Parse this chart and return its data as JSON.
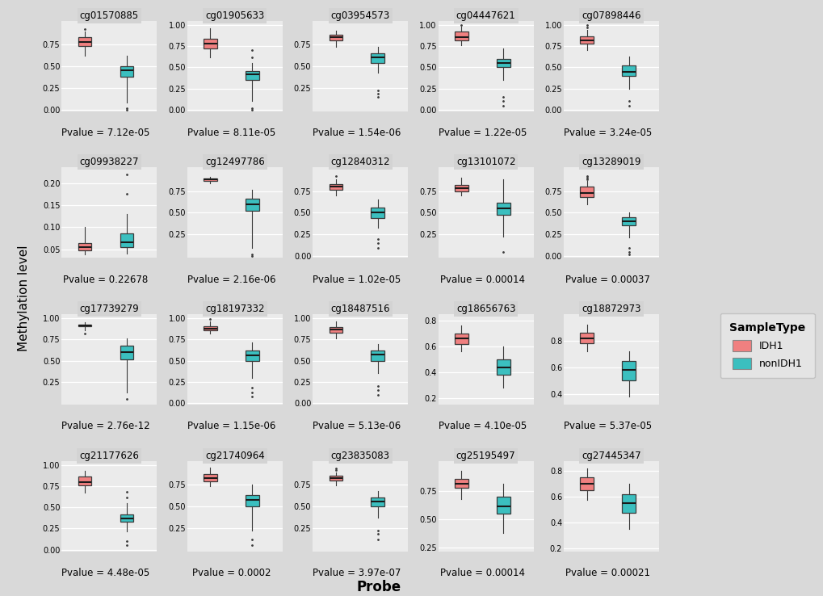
{
  "panels": [
    {
      "title": "cg01570885",
      "pvalue": "Pvalue = 7.12e-05",
      "idh1": {
        "whislo": 0.62,
        "q1": 0.73,
        "med": 0.78,
        "q3": 0.83,
        "whishi": 0.9,
        "fliers_lo": [],
        "fliers_hi": [
          0.93
        ]
      },
      "nonidh1": {
        "whislo": 0.08,
        "q1": 0.38,
        "med": 0.45,
        "q3": 0.5,
        "whishi": 0.62,
        "fliers_lo": [
          0.02,
          0.0
        ],
        "fliers_hi": []
      },
      "ylim": [
        -0.02,
        1.02
      ],
      "yticks": [
        0.0,
        0.25,
        0.5,
        0.75
      ]
    },
    {
      "title": "cg01905633",
      "pvalue": "Pvalue = 8.11e-05",
      "idh1": {
        "whislo": 0.62,
        "q1": 0.72,
        "med": 0.78,
        "q3": 0.84,
        "whishi": 0.96,
        "fliers_lo": [],
        "fliers_hi": []
      },
      "nonidh1": {
        "whislo": 0.1,
        "q1": 0.35,
        "med": 0.42,
        "q3": 0.46,
        "whishi": 0.55,
        "fliers_lo": [
          0.02,
          0.0
        ],
        "fliers_hi": [
          0.62,
          0.7
        ]
      },
      "ylim": [
        -0.02,
        1.05
      ],
      "yticks": [
        0.0,
        0.25,
        0.5,
        0.75,
        1.0
      ]
    },
    {
      "title": "cg03954573",
      "pvalue": "Pvalue = 1.54e-06",
      "idh1": {
        "whislo": 0.72,
        "q1": 0.8,
        "med": 0.83,
        "q3": 0.86,
        "whishi": 0.91,
        "fliers_lo": [],
        "fliers_hi": []
      },
      "nonidh1": {
        "whislo": 0.42,
        "q1": 0.54,
        "med": 0.6,
        "q3": 0.65,
        "whishi": 0.72,
        "fliers_lo": [
          0.22,
          0.18,
          0.15
        ],
        "fliers_hi": []
      },
      "ylim": [
        -0.02,
        1.02
      ],
      "yticks": [
        0.25,
        0.5,
        0.75
      ]
    },
    {
      "title": "cg04447621",
      "pvalue": "Pvalue = 1.22e-05",
      "idh1": {
        "whislo": 0.76,
        "q1": 0.82,
        "med": 0.86,
        "q3": 0.92,
        "whishi": 0.98,
        "fliers_lo": [],
        "fliers_hi": [
          1.0
        ]
      },
      "nonidh1": {
        "whislo": 0.35,
        "q1": 0.5,
        "med": 0.55,
        "q3": 0.6,
        "whishi": 0.72,
        "fliers_lo": [
          0.15,
          0.1,
          0.05
        ],
        "fliers_hi": []
      },
      "ylim": [
        -0.02,
        1.05
      ],
      "yticks": [
        0.0,
        0.25,
        0.5,
        0.75,
        1.0
      ]
    },
    {
      "title": "cg07898446",
      "pvalue": "Pvalue = 3.24e-05",
      "idh1": {
        "whislo": 0.7,
        "q1": 0.78,
        "med": 0.82,
        "q3": 0.87,
        "whishi": 0.94,
        "fliers_lo": [],
        "fliers_hi": [
          0.97,
          1.0
        ]
      },
      "nonidh1": {
        "whislo": 0.25,
        "q1": 0.4,
        "med": 0.45,
        "q3": 0.52,
        "whishi": 0.63,
        "fliers_lo": [
          0.1,
          0.05
        ],
        "fliers_hi": []
      },
      "ylim": [
        -0.02,
        1.05
      ],
      "yticks": [
        0.0,
        0.25,
        0.5,
        0.75,
        1.0
      ]
    },
    {
      "title": "cg09938227",
      "pvalue": "Pvalue = 0.22678",
      "idh1": {
        "whislo": 0.038,
        "q1": 0.048,
        "med": 0.054,
        "q3": 0.063,
        "whishi": 0.1,
        "fliers_lo": [],
        "fliers_hi": []
      },
      "nonidh1": {
        "whislo": 0.04,
        "q1": 0.055,
        "med": 0.065,
        "q3": 0.085,
        "whishi": 0.13,
        "fliers_lo": [],
        "fliers_hi": [
          0.175,
          0.22
        ]
      },
      "ylim": [
        0.03,
        0.235
      ],
      "yticks": [
        0.05,
        0.1,
        0.15,
        0.2
      ]
    },
    {
      "title": "cg12497786",
      "pvalue": "Pvalue = 2.16e-06",
      "idh1": {
        "whislo": 0.84,
        "q1": 0.87,
        "med": 0.885,
        "q3": 0.895,
        "whishi": 0.91,
        "fliers_lo": [],
        "fliers_hi": []
      },
      "nonidh1": {
        "whislo": 0.1,
        "q1": 0.52,
        "med": 0.6,
        "q3": 0.66,
        "whishi": 0.76,
        "fliers_lo": [
          0.02,
          0.0
        ],
        "fliers_hi": []
      },
      "ylim": [
        -0.02,
        1.02
      ],
      "yticks": [
        0.25,
        0.5,
        0.75
      ]
    },
    {
      "title": "cg12840312",
      "pvalue": "Pvalue = 1.02e-05",
      "idh1": {
        "whislo": 0.7,
        "q1": 0.76,
        "med": 0.8,
        "q3": 0.83,
        "whishi": 0.88,
        "fliers_lo": [],
        "fliers_hi": [
          0.92
        ]
      },
      "nonidh1": {
        "whislo": 0.33,
        "q1": 0.44,
        "med": 0.5,
        "q3": 0.56,
        "whishi": 0.65,
        "fliers_lo": [
          0.2,
          0.15,
          0.1
        ],
        "fliers_hi": []
      },
      "ylim": [
        -0.02,
        1.02
      ],
      "yticks": [
        0.0,
        0.25,
        0.5,
        0.75
      ]
    },
    {
      "title": "cg13101072",
      "pvalue": "Pvalue = 0.00014",
      "idh1": {
        "whislo": 0.7,
        "q1": 0.75,
        "med": 0.78,
        "q3": 0.82,
        "whishi": 0.9,
        "fliers_lo": [],
        "fliers_hi": []
      },
      "nonidh1": {
        "whislo": 0.23,
        "q1": 0.48,
        "med": 0.55,
        "q3": 0.62,
        "whishi": 0.88,
        "fliers_lo": [
          0.05
        ],
        "fliers_hi": []
      },
      "ylim": [
        -0.02,
        1.02
      ],
      "yticks": [
        0.25,
        0.5,
        0.75
      ]
    },
    {
      "title": "cg13289019",
      "pvalue": "Pvalue = 0.00037",
      "idh1": {
        "whislo": 0.6,
        "q1": 0.68,
        "med": 0.73,
        "q3": 0.8,
        "whishi": 0.87,
        "fliers_lo": [],
        "fliers_hi": [
          0.9,
          0.92,
          0.88
        ]
      },
      "nonidh1": {
        "whislo": 0.22,
        "q1": 0.36,
        "med": 0.4,
        "q3": 0.45,
        "whishi": 0.5,
        "fliers_lo": [
          0.1,
          0.05,
          0.02
        ],
        "fliers_hi": []
      },
      "ylim": [
        -0.02,
        1.02
      ],
      "yticks": [
        0.0,
        0.25,
        0.5,
        0.75
      ]
    },
    {
      "title": "cg17739279",
      "pvalue": "Pvalue = 2.76e-12",
      "idh1": {
        "whislo": 0.86,
        "q1": 0.905,
        "med": 0.92,
        "q3": 0.93,
        "whishi": 0.95,
        "fliers_lo": [
          0.825
        ],
        "fliers_hi": []
      },
      "nonidh1": {
        "whislo": 0.12,
        "q1": 0.52,
        "med": 0.6,
        "q3": 0.68,
        "whishi": 0.76,
        "fliers_lo": [
          0.05
        ],
        "fliers_hi": []
      },
      "ylim": [
        -0.02,
        1.05
      ],
      "yticks": [
        0.25,
        0.5,
        0.75,
        1.0
      ]
    },
    {
      "title": "cg18197332",
      "pvalue": "Pvalue = 1.15e-06",
      "idh1": {
        "whislo": 0.82,
        "q1": 0.86,
        "med": 0.88,
        "q3": 0.91,
        "whishi": 0.96,
        "fliers_lo": [],
        "fliers_hi": [
          0.99
        ]
      },
      "nonidh1": {
        "whislo": 0.3,
        "q1": 0.5,
        "med": 0.56,
        "q3": 0.62,
        "whishi": 0.72,
        "fliers_lo": [
          0.18,
          0.12,
          0.08
        ],
        "fliers_hi": []
      },
      "ylim": [
        -0.02,
        1.05
      ],
      "yticks": [
        0.0,
        0.25,
        0.5,
        0.75,
        1.0
      ]
    },
    {
      "title": "cg18487516",
      "pvalue": "Pvalue = 5.13e-06",
      "idh1": {
        "whislo": 0.76,
        "q1": 0.83,
        "med": 0.87,
        "q3": 0.9,
        "whishi": 0.96,
        "fliers_lo": [],
        "fliers_hi": []
      },
      "nonidh1": {
        "whislo": 0.35,
        "q1": 0.5,
        "med": 0.57,
        "q3": 0.62,
        "whishi": 0.7,
        "fliers_lo": [
          0.2,
          0.15,
          0.1
        ],
        "fliers_hi": []
      },
      "ylim": [
        -0.02,
        1.05
      ],
      "yticks": [
        0.0,
        0.25,
        0.5,
        0.75,
        1.0
      ]
    },
    {
      "title": "cg18656763",
      "pvalue": "Pvalue = 4.10e-05",
      "idh1": {
        "whislo": 0.56,
        "q1": 0.62,
        "med": 0.66,
        "q3": 0.7,
        "whishi": 0.76,
        "fliers_lo": [],
        "fliers_hi": []
      },
      "nonidh1": {
        "whislo": 0.28,
        "q1": 0.38,
        "med": 0.44,
        "q3": 0.5,
        "whishi": 0.6,
        "fliers_lo": [],
        "fliers_hi": []
      },
      "ylim": [
        0.15,
        0.85
      ],
      "yticks": [
        0.2,
        0.4,
        0.6,
        0.8
      ]
    },
    {
      "title": "cg18872973",
      "pvalue": "Pvalue = 5.37e-05",
      "idh1": {
        "whislo": 0.72,
        "q1": 0.78,
        "med": 0.82,
        "q3": 0.86,
        "whishi": 0.92,
        "fliers_lo": [],
        "fliers_hi": []
      },
      "nonidh1": {
        "whislo": 0.38,
        "q1": 0.5,
        "med": 0.58,
        "q3": 0.65,
        "whishi": 0.72,
        "fliers_lo": [],
        "fliers_hi": []
      },
      "ylim": [
        0.32,
        1.0
      ],
      "yticks": [
        0.4,
        0.6,
        0.8
      ]
    },
    {
      "title": "cg21177626",
      "pvalue": "Pvalue = 4.48e-05",
      "idh1": {
        "whislo": 0.67,
        "q1": 0.76,
        "med": 0.8,
        "q3": 0.86,
        "whishi": 0.93,
        "fliers_lo": [],
        "fliers_hi": []
      },
      "nonidh1": {
        "whislo": 0.22,
        "q1": 0.33,
        "med": 0.37,
        "q3": 0.42,
        "whishi": 0.55,
        "fliers_lo": [
          0.1,
          0.05
        ],
        "fliers_hi": [
          0.62,
          0.68
        ]
      },
      "ylim": [
        -0.02,
        1.05
      ],
      "yticks": [
        0.0,
        0.25,
        0.5,
        0.75,
        1.0
      ]
    },
    {
      "title": "cg21740964",
      "pvalue": "Pvalue = 0.0002",
      "idh1": {
        "whislo": 0.73,
        "q1": 0.78,
        "med": 0.82,
        "q3": 0.87,
        "whishi": 0.94,
        "fliers_lo": [],
        "fliers_hi": []
      },
      "nonidh1": {
        "whislo": 0.22,
        "q1": 0.5,
        "med": 0.57,
        "q3": 0.63,
        "whishi": 0.75,
        "fliers_lo": [
          0.12,
          0.05
        ],
        "fliers_hi": []
      },
      "ylim": [
        -0.02,
        1.02
      ],
      "yticks": [
        0.25,
        0.5,
        0.75
      ]
    },
    {
      "title": "cg23835083",
      "pvalue": "Pvalue = 3.97e-07",
      "idh1": {
        "whislo": 0.74,
        "q1": 0.79,
        "med": 0.82,
        "q3": 0.85,
        "whishi": 0.89,
        "fliers_lo": [],
        "fliers_hi": [
          0.93,
          0.91
        ]
      },
      "nonidh1": {
        "whislo": 0.37,
        "q1": 0.5,
        "med": 0.55,
        "q3": 0.6,
        "whishi": 0.67,
        "fliers_lo": [
          0.22,
          0.18,
          0.12
        ],
        "fliers_hi": []
      },
      "ylim": [
        -0.02,
        1.02
      ],
      "yticks": [
        0.25,
        0.5,
        0.75
      ]
    },
    {
      "title": "cg25195497",
      "pvalue": "Pvalue = 0.00014",
      "idh1": {
        "whislo": 0.68,
        "q1": 0.78,
        "med": 0.82,
        "q3": 0.86,
        "whishi": 0.93,
        "fliers_lo": [],
        "fliers_hi": []
      },
      "nonidh1": {
        "whislo": 0.38,
        "q1": 0.55,
        "med": 0.62,
        "q3": 0.7,
        "whishi": 0.82,
        "fliers_lo": [],
        "fliers_hi": []
      },
      "ylim": [
        0.22,
        1.02
      ],
      "yticks": [
        0.25,
        0.5,
        0.75
      ]
    },
    {
      "title": "cg27445347",
      "pvalue": "Pvalue = 0.00021",
      "idh1": {
        "whislo": 0.58,
        "q1": 0.65,
        "med": 0.7,
        "q3": 0.75,
        "whishi": 0.82,
        "fliers_lo": [],
        "fliers_hi": []
      },
      "nonidh1": {
        "whislo": 0.35,
        "q1": 0.48,
        "med": 0.55,
        "q3": 0.62,
        "whishi": 0.7,
        "fliers_lo": [],
        "fliers_hi": []
      },
      "ylim": [
        0.18,
        0.88
      ],
      "yticks": [
        0.2,
        0.4,
        0.6,
        0.8
      ]
    }
  ],
  "idh1_color": "#F08080",
  "nonidh1_color": "#3BBFBF",
  "background_color": "#D9D9D9",
  "panel_bg": "#EBEBEB",
  "header_bg": "#D3D3D3",
  "grid_color": "#FFFFFF",
  "nrows": 4,
  "ncols": 5,
  "ylabel": "Methylation level",
  "xlabel": "Probe",
  "title_fontsize": 8.5,
  "label_fontsize": 11,
  "tick_fontsize": 7,
  "pvalue_fontsize": 8.5
}
